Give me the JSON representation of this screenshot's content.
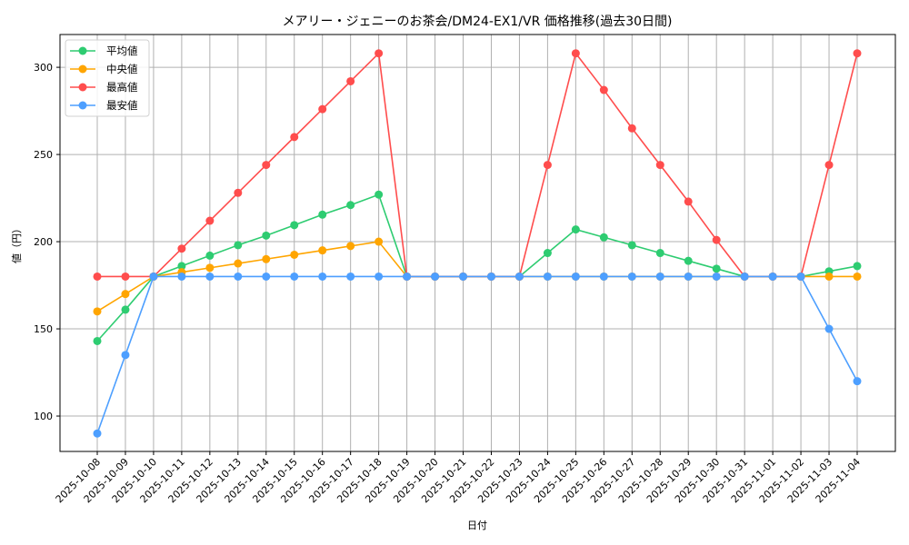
{
  "chart_data": {
    "type": "line",
    "title": "メアリー・ジェニーのお茶会/DM24-EX1/VR 価格推移(過去30日間)",
    "xlabel": "日付",
    "ylabel": "値（円）",
    "ylim": [
      79.7,
      318.8
    ],
    "yticks": [
      100,
      150,
      200,
      250,
      300
    ],
    "grid": true,
    "legend_position": "upper left",
    "x": [
      "2025-10-08",
      "2025-10-09",
      "2025-10-10",
      "2025-10-11",
      "2025-10-12",
      "2025-10-13",
      "2025-10-14",
      "2025-10-15",
      "2025-10-16",
      "2025-10-17",
      "2025-10-18",
      "2025-10-19",
      "2025-10-20",
      "2025-10-21",
      "2025-10-22",
      "2025-10-23",
      "2025-10-24",
      "2025-10-25",
      "2025-10-26",
      "2025-10-27",
      "2025-10-28",
      "2025-10-29",
      "2025-10-30",
      "2025-10-31",
      "2025-11-01",
      "2025-11-02",
      "2025-11-03",
      "2025-11-04"
    ],
    "series": [
      {
        "name": "平均値",
        "color": "#2ecc71",
        "values": [
          143,
          161,
          180,
          186,
          192,
          198,
          203.5,
          209.5,
          215.5,
          221,
          227,
          180,
          180,
          180,
          180,
          180,
          193.5,
          207,
          202.5,
          198,
          193.5,
          189,
          184.5,
          180,
          180,
          180,
          183,
          186
        ]
      },
      {
        "name": "中央値",
        "color": "#ffa500",
        "values": [
          160,
          170,
          180,
          182.5,
          185,
          187.5,
          190,
          192.5,
          195,
          197.5,
          200,
          180,
          180,
          180,
          180,
          180,
          180,
          180,
          180,
          180,
          180,
          180,
          180,
          180,
          180,
          180,
          180,
          180
        ]
      },
      {
        "name": "最高値",
        "color": "#ff4d4d",
        "values": [
          180,
          180,
          180,
          196,
          212,
          228,
          244,
          260,
          276,
          292,
          308,
          180,
          180,
          180,
          180,
          180,
          244,
          308,
          287,
          265,
          244,
          223,
          201,
          180,
          180,
          180,
          244,
          308
        ]
      },
      {
        "name": "最安値",
        "color": "#4d9fff",
        "values": [
          90,
          135,
          180,
          180,
          180,
          180,
          180,
          180,
          180,
          180,
          180,
          180,
          180,
          180,
          180,
          180,
          180,
          180,
          180,
          180,
          180,
          180,
          180,
          180,
          180,
          180,
          150,
          120
        ]
      }
    ]
  }
}
